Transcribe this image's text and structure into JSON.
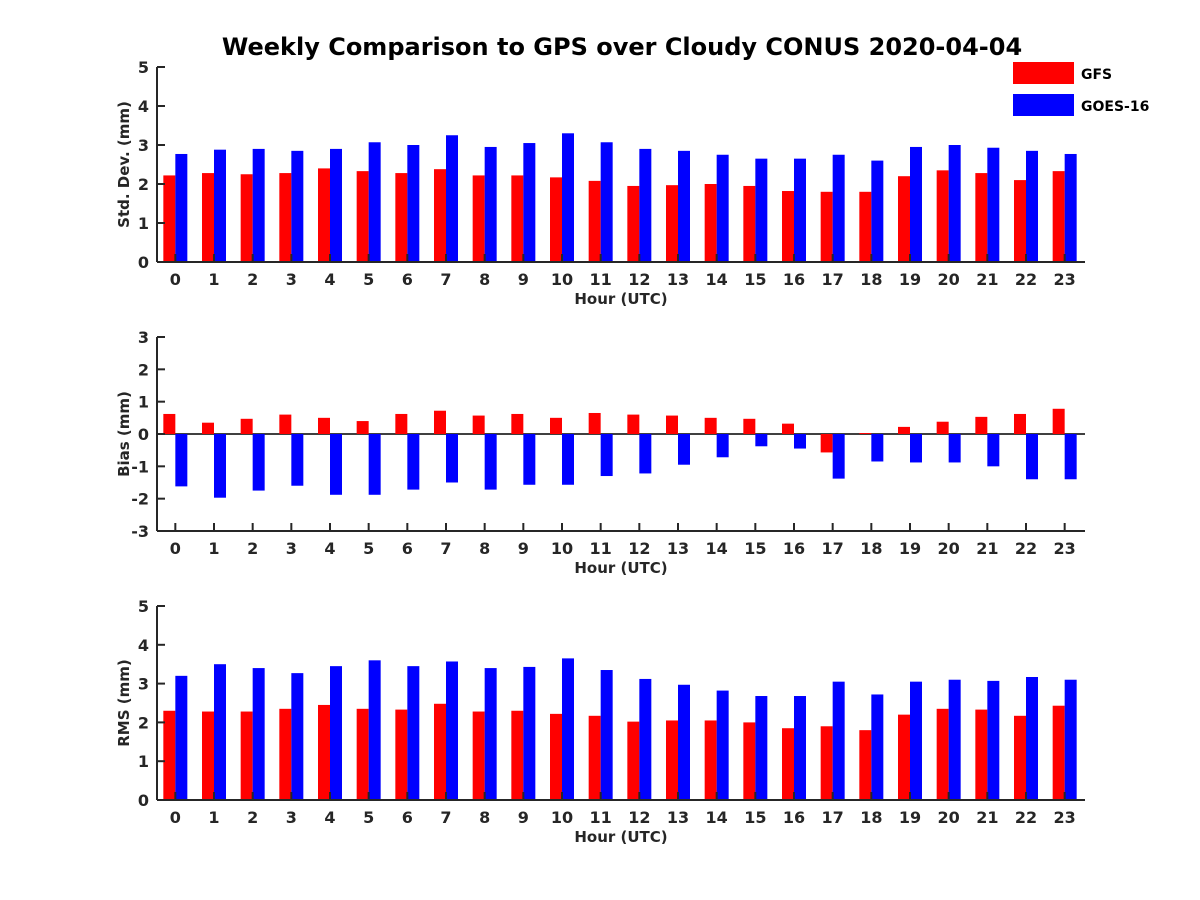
{
  "title": "Weekly Comparison to GPS over Cloudy CONUS 2020-04-04",
  "legend": {
    "placement": "top-right",
    "items": [
      {
        "label": "GFS",
        "color": "#ff0000"
      },
      {
        "label": "GOES-16",
        "color": "#0000ff"
      }
    ]
  },
  "chart_data": [
    {
      "type": "bar",
      "xlabel": "Hour (UTC)",
      "ylabel": "Std. Dev. (mm)",
      "ylim": [
        0,
        5
      ],
      "yticks": [
        0,
        1,
        2,
        3,
        4,
        5
      ],
      "categories": [
        "0",
        "1",
        "2",
        "3",
        "4",
        "5",
        "6",
        "7",
        "8",
        "9",
        "10",
        "11",
        "12",
        "13",
        "14",
        "15",
        "16",
        "17",
        "18",
        "19",
        "20",
        "21",
        "22",
        "23"
      ],
      "series": [
        {
          "name": "GFS",
          "color": "#ff0000",
          "values": [
            2.22,
            2.28,
            2.25,
            2.28,
            2.4,
            2.33,
            2.28,
            2.38,
            2.22,
            2.22,
            2.17,
            2.08,
            1.95,
            1.97,
            2.0,
            1.95,
            1.82,
            1.8,
            1.8,
            2.2,
            2.35,
            2.28,
            2.1,
            2.33
          ]
        },
        {
          "name": "GOES-16",
          "color": "#0000ff",
          "values": [
            2.77,
            2.88,
            2.9,
            2.85,
            2.9,
            3.07,
            3.0,
            3.25,
            2.95,
            3.05,
            3.3,
            3.07,
            2.9,
            2.85,
            2.75,
            2.65,
            2.65,
            2.75,
            2.6,
            2.95,
            3.0,
            2.93,
            2.85,
            2.77
          ]
        }
      ]
    },
    {
      "type": "bar",
      "xlabel": "Hour (UTC)",
      "ylabel": "Bias (mm)",
      "ylim": [
        -3,
        3
      ],
      "yticks": [
        -3,
        -2,
        -1,
        0,
        1,
        2,
        3
      ],
      "categories": [
        "0",
        "1",
        "2",
        "3",
        "4",
        "5",
        "6",
        "7",
        "8",
        "9",
        "10",
        "11",
        "12",
        "13",
        "14",
        "15",
        "16",
        "17",
        "18",
        "19",
        "20",
        "21",
        "22",
        "23"
      ],
      "series": [
        {
          "name": "GFS",
          "color": "#ff0000",
          "values": [
            0.62,
            0.35,
            0.47,
            0.6,
            0.5,
            0.4,
            0.62,
            0.72,
            0.57,
            0.62,
            0.5,
            0.65,
            0.6,
            0.57,
            0.5,
            0.47,
            0.32,
            -0.57,
            0.03,
            0.22,
            0.38,
            0.53,
            0.62,
            0.78
          ]
        },
        {
          "name": "GOES-16",
          "color": "#0000ff",
          "values": [
            -1.62,
            -1.97,
            -1.75,
            -1.6,
            -1.88,
            -1.88,
            -1.72,
            -1.5,
            -1.72,
            -1.57,
            -1.57,
            -1.3,
            -1.22,
            -0.95,
            -0.72,
            -0.38,
            -0.45,
            -1.38,
            -0.85,
            -0.88,
            -0.88,
            -1.0,
            -1.4,
            -1.4
          ]
        }
      ]
    },
    {
      "type": "bar",
      "xlabel": "Hour (UTC)",
      "ylabel": "RMS (mm)",
      "ylim": [
        0,
        5
      ],
      "yticks": [
        0,
        1,
        2,
        3,
        4,
        5
      ],
      "categories": [
        "0",
        "1",
        "2",
        "3",
        "4",
        "5",
        "6",
        "7",
        "8",
        "9",
        "10",
        "11",
        "12",
        "13",
        "14",
        "15",
        "16",
        "17",
        "18",
        "19",
        "20",
        "21",
        "22",
        "23"
      ],
      "series": [
        {
          "name": "GFS",
          "color": "#ff0000",
          "values": [
            2.3,
            2.28,
            2.28,
            2.35,
            2.45,
            2.35,
            2.33,
            2.48,
            2.28,
            2.3,
            2.22,
            2.17,
            2.02,
            2.05,
            2.05,
            2.0,
            1.85,
            1.9,
            1.8,
            2.2,
            2.35,
            2.33,
            2.17,
            2.43
          ]
        },
        {
          "name": "GOES-16",
          "color": "#0000ff",
          "values": [
            3.2,
            3.5,
            3.4,
            3.27,
            3.45,
            3.6,
            3.45,
            3.57,
            3.4,
            3.43,
            3.65,
            3.35,
            3.12,
            2.97,
            2.82,
            2.68,
            2.68,
            3.05,
            2.72,
            3.05,
            3.1,
            3.07,
            3.17,
            3.1
          ]
        }
      ]
    }
  ]
}
